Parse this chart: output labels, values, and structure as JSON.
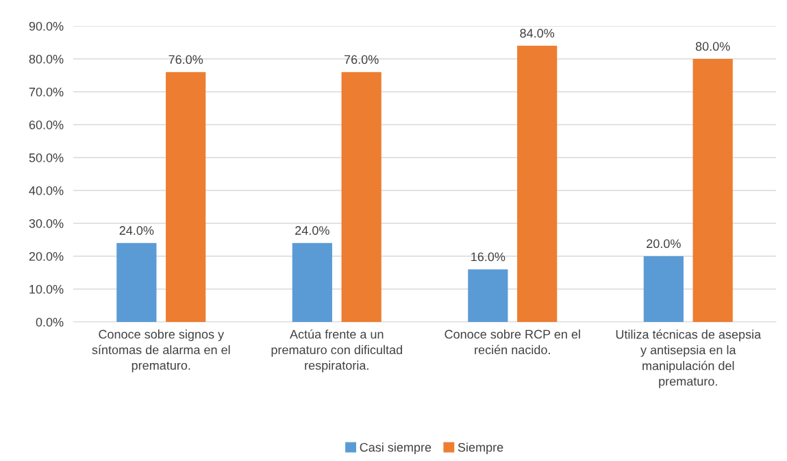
{
  "chart_data": {
    "type": "bar",
    "categories": [
      "Conoce sobre signos y\nsíntomas de alarma en el\nprematuro.",
      "Actúa frente a un\nprematuro con dificultad\nrespiratoria.",
      "Conoce sobre RCP en el\nrecién nacido.",
      "Utiliza técnicas de asepsia\ny antisepsia en la\nmanipulación del\nprematuro."
    ],
    "series": [
      {
        "name": "Casi siempre",
        "color": "#5b9bd5",
        "values": [
          24,
          24,
          16,
          20
        ],
        "value_labels": [
          "24.0%",
          "24.0%",
          "16.0%",
          "20.0%"
        ]
      },
      {
        "name": "Siempre",
        "color": "#ed7d31",
        "values": [
          76,
          76,
          84,
          80
        ],
        "value_labels": [
          "76.0%",
          "76.0%",
          "84.0%",
          "80.0%"
        ]
      }
    ],
    "ylim": [
      0,
      90
    ],
    "yticks": [
      {
        "value": 0,
        "label": "0.0%"
      },
      {
        "value": 10,
        "label": "10.0%"
      },
      {
        "value": 20,
        "label": "20.0%"
      },
      {
        "value": 30,
        "label": "30.0%"
      },
      {
        "value": 40,
        "label": "40.0%"
      },
      {
        "value": 50,
        "label": "50.0%"
      },
      {
        "value": 60,
        "label": "60.0%"
      },
      {
        "value": 70,
        "label": "70.0%"
      },
      {
        "value": 80,
        "label": "80.0%"
      },
      {
        "value": 90,
        "label": "90.0%"
      }
    ],
    "grid": "y",
    "legend": "bottom"
  }
}
